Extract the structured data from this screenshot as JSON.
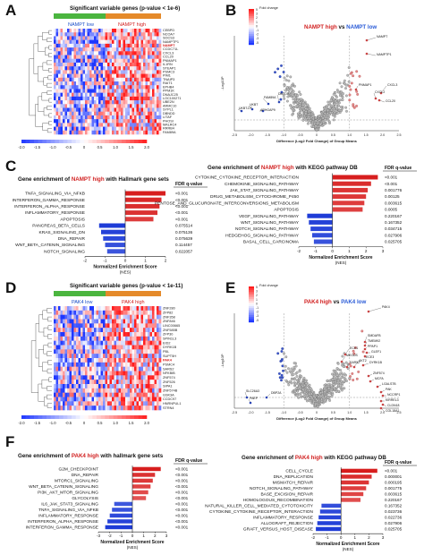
{
  "panels": {
    "A": {
      "label": "A",
      "title": "Significant variable genes (p-value < 1e-6)",
      "group_low": "NAMPT low",
      "group_high": "NAMPT high",
      "genes": [
        "CEBPD",
        "NCOA7",
        "SOCS3",
        "NAMPTP1",
        "NAMPT",
        "CCDC71L",
        "CXCL3",
        "CCL20",
        "PNMAP1",
        "IL1RN",
        "STEAP1",
        "PSMC3",
        "PIM1",
        "TNAIP3",
        "RAIT1",
        "EPHB4",
        "PPM1K",
        "DNAJC25",
        "LOC100271",
        "UBE2N",
        "ARMC10",
        "SYPL1",
        "DBNDD",
        "LITAF",
        "PHOSI",
        "MALRC4",
        "RRRB4",
        "FAM89A"
      ],
      "highlight_gene": "NAMPT",
      "scale_ticks": [
        "-2.0",
        "-1.5",
        "-1.0",
        "-0.5",
        "0",
        "0.5",
        "1.0",
        "1.5",
        "2.0"
      ]
    },
    "B": {
      "label": "B",
      "title_high": "NAMPT high",
      "title_vs": "vs",
      "title_low": "NAMPT low",
      "legend_title": "Fold change",
      "legend_ticks": [
        "5",
        "3",
        "2",
        "1",
        "0",
        "-1",
        "-2",
        "-3",
        "-5"
      ],
      "ylabel": "-Log10P",
      "xlabel": "Difference (Log2 Fold Change) of Group Means",
      "xticks": [
        "-2.5",
        "-2.0",
        "-1.5",
        "-1.0",
        "-0.5",
        "0",
        "0.5",
        "1.0",
        "1.5",
        "2.0",
        "2.5"
      ],
      "gene_labels": [
        "NAMPT",
        "NAMPTP1",
        "PNMAP1",
        "CXCL3",
        "CXCL2",
        "CCL20",
        "FAM89A",
        "DBCD8",
        "UKBT",
        "ARHGAP9",
        "UKBT-DT"
      ]
    },
    "C": {
      "label": "C",
      "left_title_1": "Gene enrichment of ",
      "left_title_hi": "NAMPT high",
      "left_title_2": " with Hallmark gene sets",
      "right_title_1": "Gene enrichment of ",
      "right_title_hi": "NAMPT high",
      "right_title_2": " with KEGG pathway DB",
      "fdr_header": "FDR q-value",
      "xlabel": "Normalized Enrichment Score",
      "xlabel2": "(NES)",
      "left_xticks": [
        "-2",
        "-1",
        "0",
        "1",
        "2"
      ],
      "right_xticks": [
        "-2",
        "-1",
        "0",
        "1",
        "2",
        "3"
      ]
    },
    "D": {
      "label": "D",
      "title": "Significant variable genes (p-value < 1e-11)",
      "group_low": "PAK4 low",
      "group_high": "PAK4 high",
      "genes": [
        "ZNF280",
        "ZFP82",
        "ZNF358",
        "ZNF846",
        "LINC00665",
        "ZNF585B",
        "ZFP30",
        "SPIN1L3",
        "EID2",
        "DYRK1B",
        "PBL",
        "SUPT5H",
        "PAK4",
        "PSMC4",
        "SARS2",
        "NFKBIB",
        "ZNF574",
        "ZNF526",
        "SIPA1",
        "ZNF574B",
        "GSK3A",
        "CCDC97",
        "HNRNPUL1",
        "STRN4"
      ],
      "highlight_gene": "PAK4",
      "scale_ticks": [
        "-2.0",
        "-1.5",
        "-1.0",
        "-0.5",
        "0",
        "0.5",
        "1.0",
        "1.5",
        "2.0"
      ]
    },
    "E": {
      "label": "E",
      "title_high": "PAK4 high",
      "title_vs": "vs",
      "title_low": "PAK4 low",
      "legend_title": "Fold change",
      "legend_ticks": [
        "5",
        "3",
        "2",
        "1",
        "0",
        "-1",
        "-2",
        "-3",
        "-5"
      ],
      "ylabel": "-Log10P",
      "xlabel": "Difference (Log2 Fold Change) of Group Means",
      "xticks": [
        "-2.5",
        "-2.0",
        "-1.5",
        "-1.0",
        "-0.5",
        "0",
        "0.5",
        "1.0",
        "1.5",
        "2.0",
        "2.5"
      ],
      "gene_labels": [
        "PAK4",
        "SMDAFB",
        "TMEM92",
        "PPAP1",
        "GLEF1",
        "ECE3",
        "DYRK1B",
        "ECH1",
        "MEGDS",
        "SAR52",
        "AKT2",
        "ZNF574",
        "MCFA",
        "LGALS7B",
        "PAK",
        "NCCRP1",
        "KIRREL3",
        "CLDN18",
        "COL18A1",
        "SLC26A3",
        "PAEP",
        "DBP2A"
      ]
    },
    "F": {
      "label": "F",
      "left_title_1": "Gene enrichment of ",
      "left_title_hi": "PAK4 high",
      "left_title_2": " with hallmark gene sets",
      "right_title_1": "Gene enrichment of ",
      "right_title_hi": "PAK4 high",
      "right_title_2": " with KEGG pathway DB",
      "fdr_header": "FDR q-value",
      "xlabel": "Normalized Enrichment Score",
      "xlabel2": "(NES)",
      "left_xticks": [
        "-3",
        "-2",
        "-1",
        "0",
        "1",
        "2",
        "3"
      ],
      "right_xticks": [
        "-2",
        "-1",
        "0",
        "1",
        "2",
        "3"
      ]
    }
  },
  "chart_data": [
    {
      "id": "C-hallmark",
      "type": "bar",
      "categories": [
        "TNFA_SIGNALING_VIA_NFKB",
        "INTERFERON_GAMMA_RESPONSE",
        "INTERFERON_ALPHA_RESPONSE",
        "INFLAMMATORY_RESPONSE",
        "APOPTOSIS",
        "PANCREAS_BETA_CELLS",
        "KRAS_SIGNALING_DN",
        "DNA_REPAIR",
        "WNT_BETA_CATENIN_SIGNALING",
        "NOTCH_SIGNALING"
      ],
      "values": [
        2.0,
        1.8,
        1.7,
        1.6,
        1.4,
        -1.3,
        -1.2,
        -1.1,
        -1.0,
        -0.9
      ],
      "fdr": [
        "<0.001",
        "<0.001",
        "<0.001",
        "<0.001",
        "<0.001",
        "0.075514",
        "0.075136",
        "0.075639",
        "0.114457",
        "0.022057"
      ],
      "xlim": [
        -2,
        2
      ]
    },
    {
      "id": "C-kegg",
      "type": "bar",
      "categories": [
        "CYTOKINE_CYTOKINE_RECEPTOR_INTERACTION",
        "CHEMOKINE_SIGNALING_PATHWAY",
        "JAK_STAT_SIGNALING_PATHWAY",
        "DRUG_METABOLISM_CYTOCHROME_P450",
        "PENTOSE_AND_GLUCURONATE_INTERCONVERSIONS_METABOLISM",
        "APOPTOSIS",
        "VEGF_SIGNALING_PATHWAY",
        "WNT_SIGNALING_PATHWAY",
        "NOTCH_SIGNALING_PATHWAY",
        "HEDGEHOG_SIGNALING_PATHWAY",
        "BASAL_CELL_CARCINOMA"
      ],
      "values": [
        2.7,
        2.3,
        2.1,
        2.0,
        1.9,
        1.8,
        -1.5,
        -1.4,
        -1.3,
        -1.2,
        -1.1
      ],
      "fdr": [
        "<0.001",
        "<0.001",
        "0.001776",
        "0.00125",
        "0.003615",
        "0.0005",
        "0.220167",
        "0.167352",
        "0.034715",
        "0.027906",
        "0.025705"
      ],
      "xlim": [
        -2,
        3
      ]
    },
    {
      "id": "F-hallmark",
      "type": "bar",
      "categories": [
        "G2M_CHECKPOINT",
        "DNA_REPAIR",
        "MTORC1_SIGNALING",
        "WNT_BETA_CATENIN_SIGNALING",
        "PI3K_AKT_MTOR_SIGNALING",
        "GLYCOLYSIS",
        "IL6_JAK_STAT3_SIGNALING",
        "TNFA_SIGNALING_VIA_NFKB",
        "INFLAMMATORY_RESPONSE",
        "INTERFERON_ALPHA_RESPONSE",
        "INTERFERON_GAMMA_RESPONSE"
      ],
      "values": [
        2.5,
        2.0,
        1.8,
        1.6,
        1.4,
        1.2,
        -1.6,
        -1.8,
        -2.0,
        -2.2,
        -2.4
      ],
      "fdr": [
        "<0.001",
        "<0.001",
        "<0.001",
        "<0.001",
        "<0.001",
        "<0.001",
        "<0.001",
        "<0.001",
        "<0.001",
        "<0.001",
        "<0.001"
      ],
      "xlim": [
        -3,
        3
      ]
    },
    {
      "id": "F-kegg",
      "type": "bar",
      "categories": [
        "CELL_CYCLE",
        "DNA_REPLICATION",
        "MISMATCH_REPAIR",
        "NOTCH_SIGNALING_PATHWAY",
        "BASE_EXCISION_REPAIR",
        "HOMOLOGOUS_RECOMBINATION",
        "NATURAL_KILLER_CELL_MEDIATED_CYTOTOXICITY",
        "CYTOKINE_CYTOKINE_RECEPTOR_INTERACTION",
        "INFLAMMATORY_RESPONSE",
        "ALLOGRAFT_REJECTION",
        "GRAFT_VERSUS_HOST_DISEASE"
      ],
      "values": [
        2.6,
        2.2,
        2.0,
        1.8,
        1.6,
        1.4,
        -1.4,
        -1.5,
        -1.6,
        -1.7,
        -1.8
      ],
      "fdr": [
        "<0.001",
        "0.000001",
        "0.000195",
        "0.001775",
        "0.003615",
        "0.220167",
        "0.167352",
        "0.023736",
        "0.022736",
        "0.027906",
        "0.025705"
      ],
      "xlim": [
        -2,
        3
      ]
    }
  ]
}
